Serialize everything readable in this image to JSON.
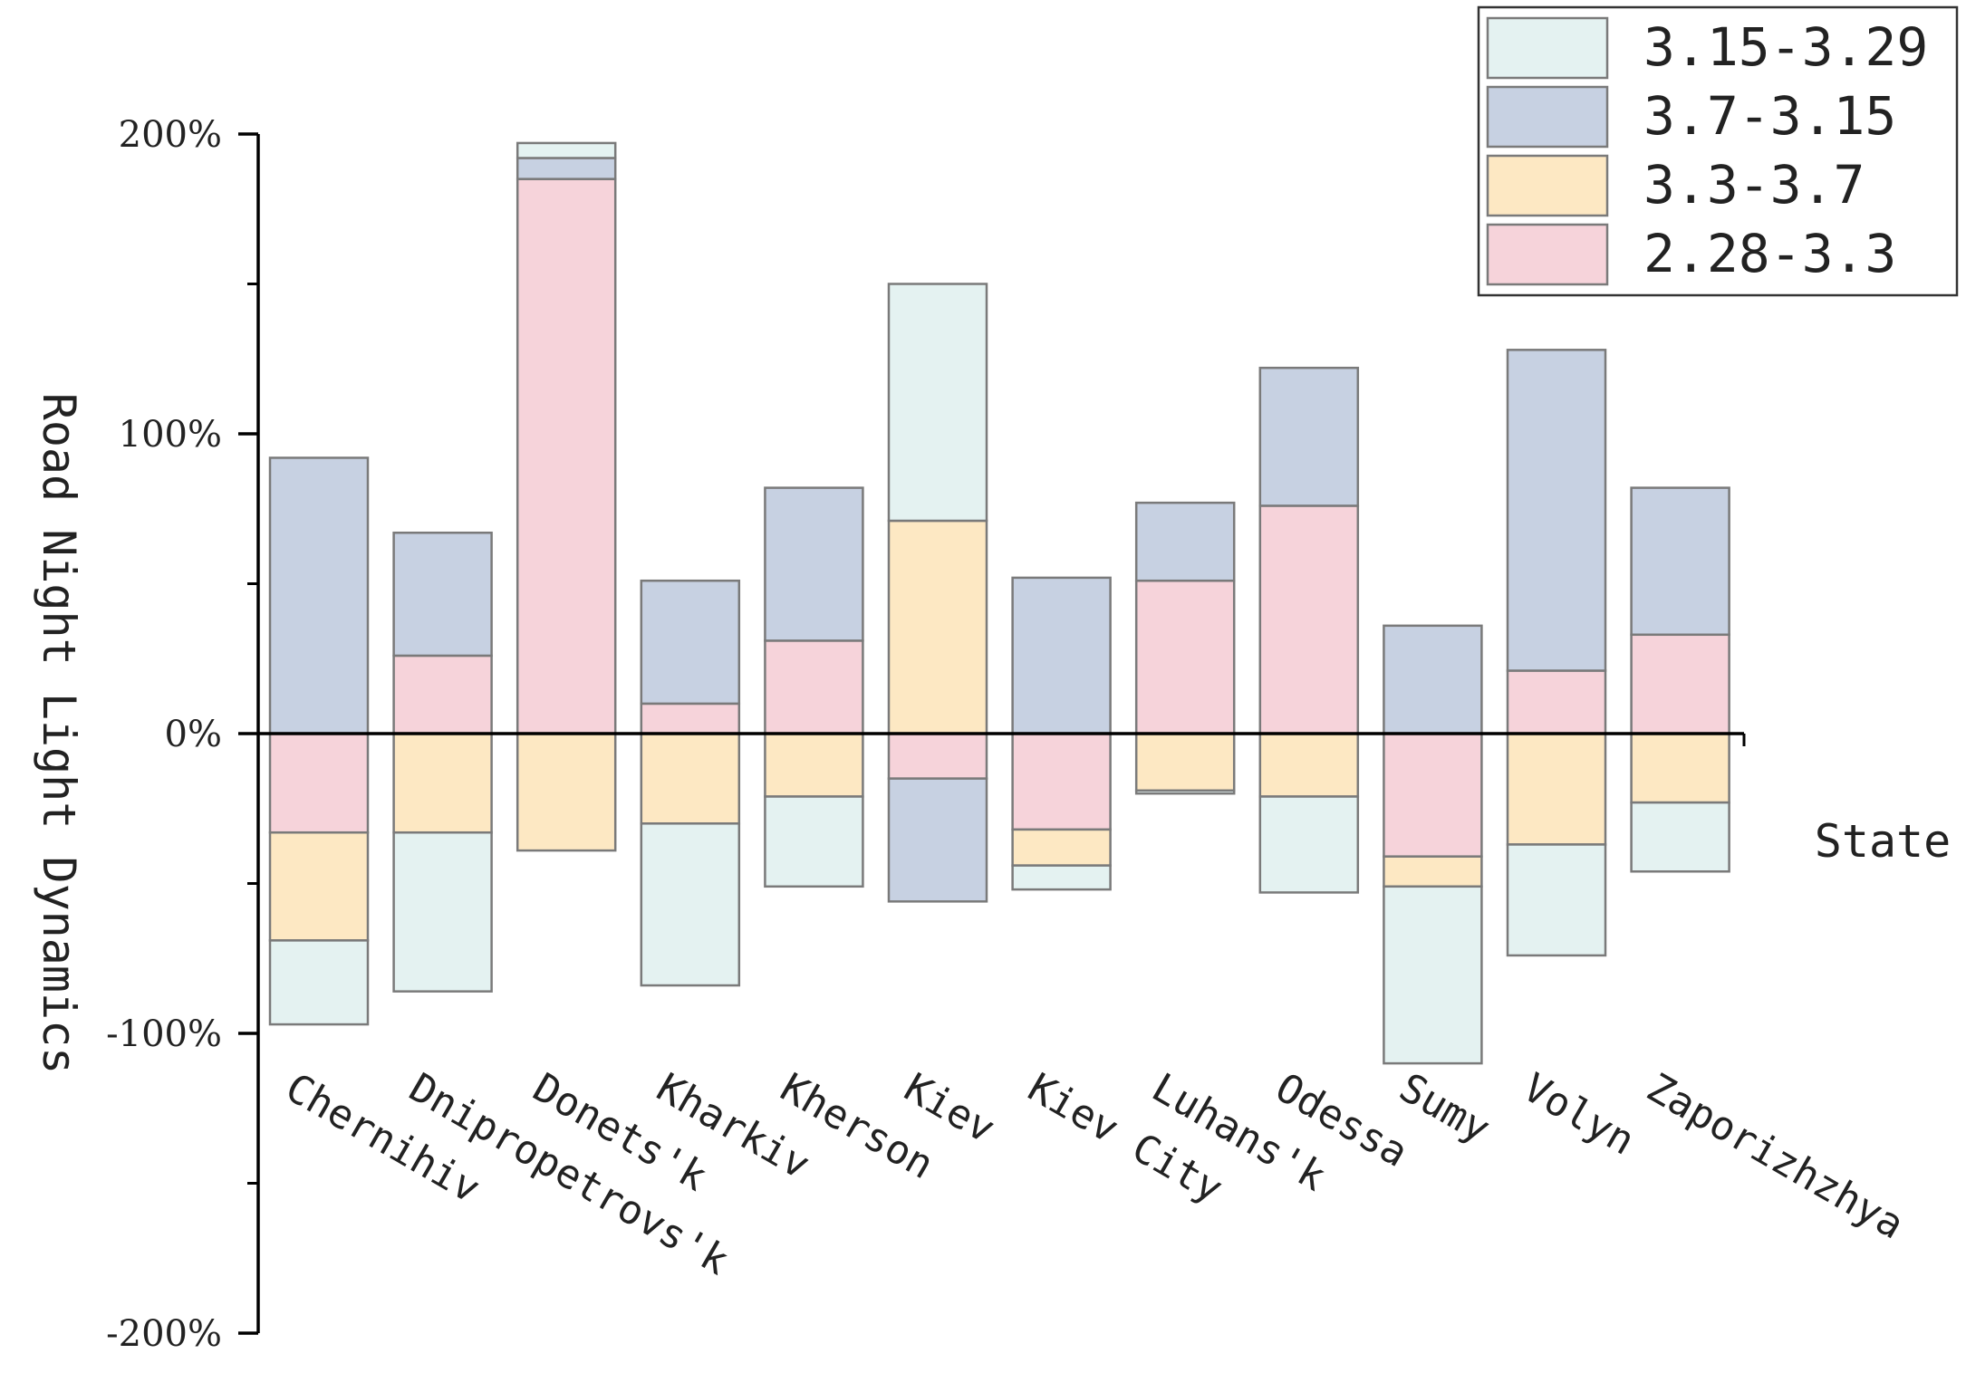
{
  "chart_data": {
    "type": "bar",
    "stacked": "diverging",
    "title": "",
    "xlabel": "State",
    "ylabel": "Road Night Light Dynamics",
    "ylim": [
      -200,
      200
    ],
    "yticks": [
      -200,
      -100,
      0,
      100,
      200
    ],
    "ytick_labels": [
      "-200%",
      "-100%",
      "0%",
      "100%",
      "200%"
    ],
    "categories": [
      "Chernihiv",
      "Dnipropetrovs'k",
      "Donets'k",
      "Kharkiv",
      "Kherson",
      "Kiev",
      "Kiev City",
      "Luhans'k",
      "Odessa",
      "Sumy",
      "Volyn",
      "Zaporizhzhya"
    ],
    "legend_position": "top-right",
    "series": [
      {
        "name": "2.28-3.3",
        "color": "#F6D3DA",
        "values": [
          -33,
          26,
          185,
          10,
          31,
          -15,
          -32,
          51,
          76,
          -41,
          21,
          33
        ]
      },
      {
        "name": "3.3-3.7",
        "color": "#FDE8C3",
        "values": [
          -36,
          -33,
          -39,
          -30,
          -21,
          71,
          -12,
          -19,
          -21,
          -10,
          -37,
          -23
        ]
      },
      {
        "name": "3.7-3.15",
        "color": "#C7D1E2",
        "values": [
          92,
          41,
          7,
          41,
          51,
          -41,
          52,
          26,
          46,
          36,
          107,
          49
        ]
      },
      {
        "name": "3.15-3.29",
        "color": "#E4F2F1",
        "values": [
          -28,
          -53,
          5,
          -54,
          -30,
          79,
          -8,
          -1,
          -32,
          -59,
          -37,
          -23
        ]
      }
    ]
  }
}
